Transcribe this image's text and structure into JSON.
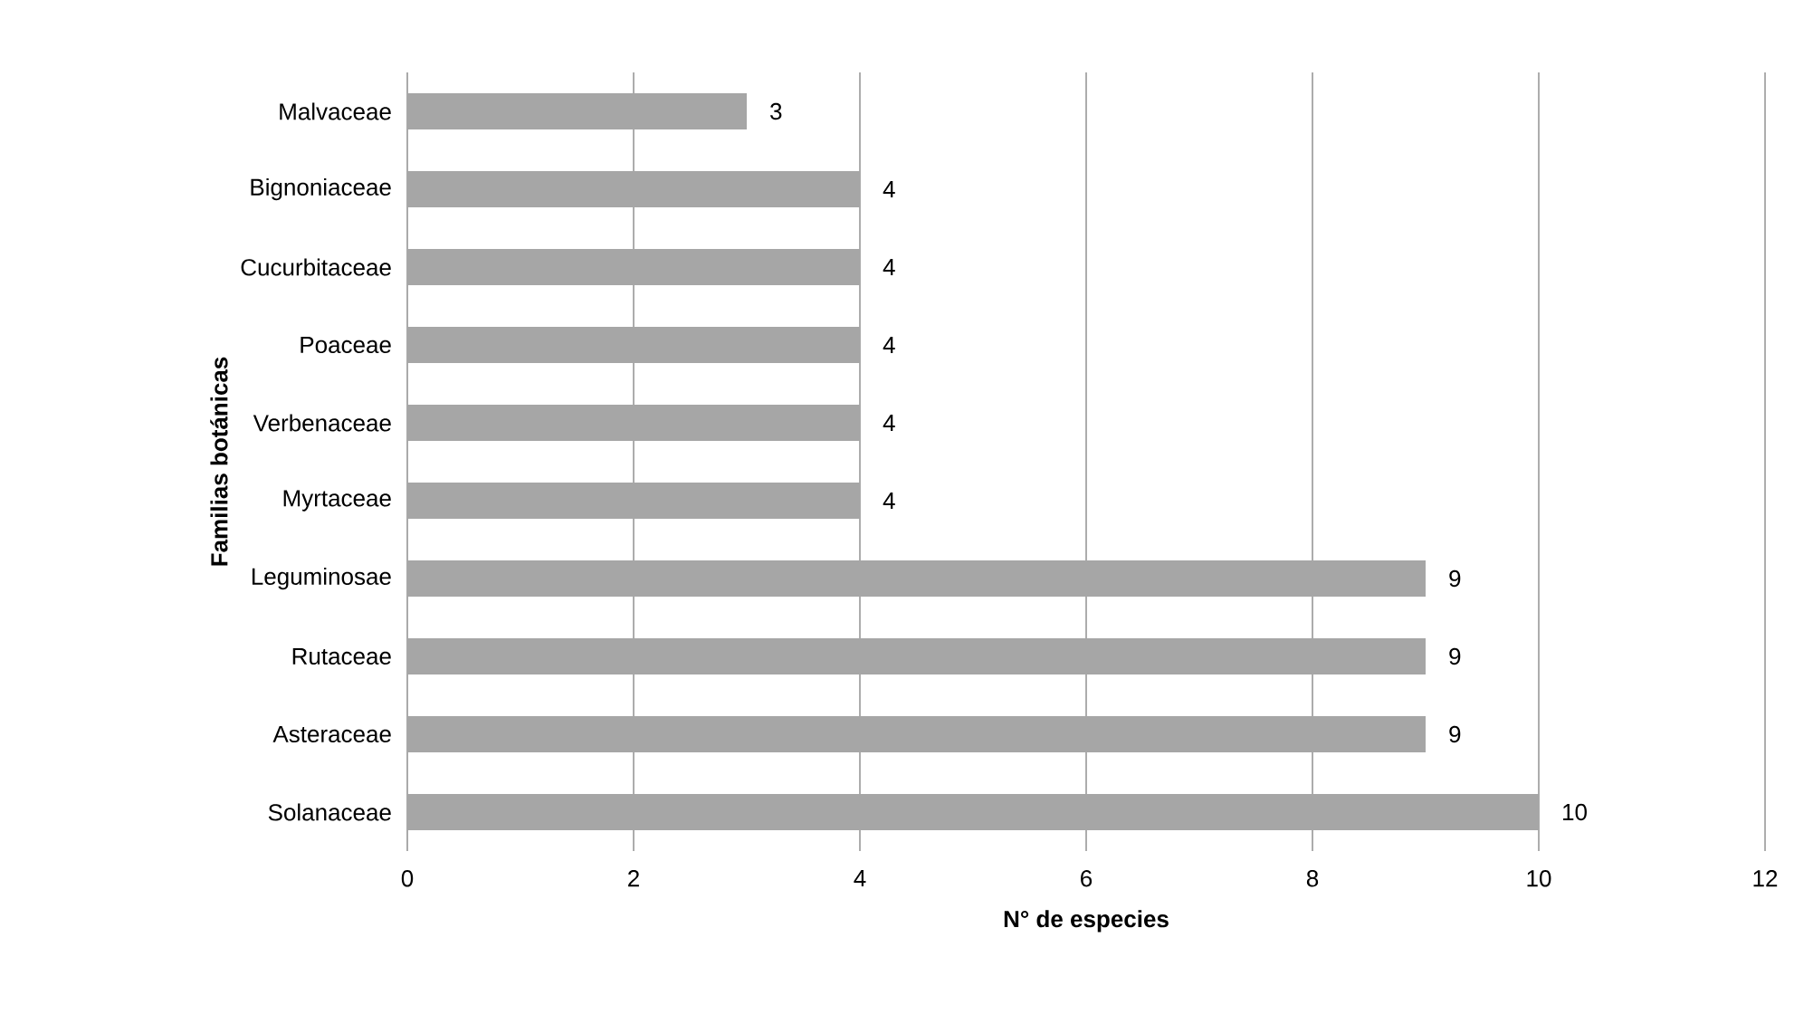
{
  "chart_data": {
    "type": "bar",
    "orientation": "horizontal",
    "xlabel": "N° de especies",
    "ylabel": "Familias botánicas",
    "categories": [
      "Malvaceae",
      "Bignoniaceae",
      "Cucurbitaceae",
      "Poaceae",
      "Verbenaceae",
      "Myrtaceae",
      "Leguminosae",
      "Rutaceae",
      "Asteraceae",
      "Solanaceae"
    ],
    "values": [
      3,
      4,
      4,
      4,
      4,
      4,
      9,
      9,
      9,
      10
    ],
    "color": "#a6a6a6",
    "xlim": [
      0,
      12
    ],
    "xticks": [
      0,
      2,
      4,
      6,
      8,
      10,
      12
    ],
    "grid": "x",
    "data_labels": true
  }
}
